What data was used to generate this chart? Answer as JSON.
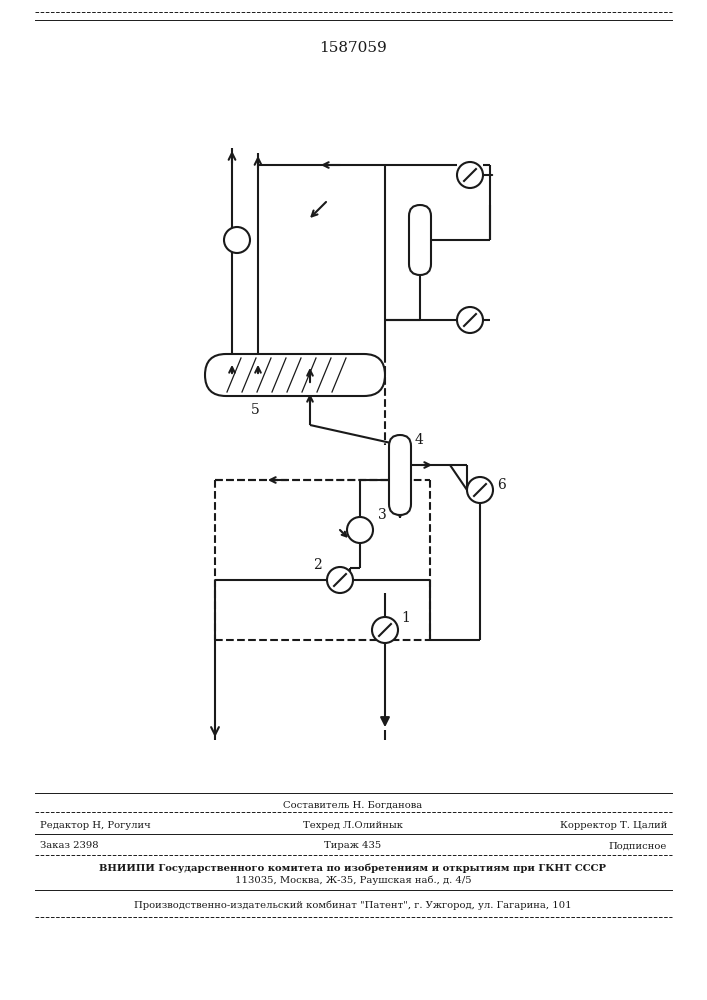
{
  "title": "1587059",
  "background_color": "#ffffff",
  "line_color": "#1a1a1a",
  "line_width": 1.5,
  "footer": {
    "sestavitel": "Составитель Н. Богданова",
    "redaktor": "Редактор Н, Рогулич",
    "tehred": "Техред Л.Олийнык",
    "korrektor": "Корректор Т. Цалий",
    "zakaz": "Заказ 2398",
    "tirazh": "Тираж 435",
    "podpisnoe": "Подписное",
    "vniipи_line1": "ВНИИПИ Государственного комитета по изобретениям и открытиям при ГКНТ СССР",
    "vniipи_line2": "113035, Москва, Ж-35, Раушская наб., д. 4/5",
    "patent": "Производственно-издательский комбинат \"Патент\", г. Ужгород, ул. Гагарина, 101"
  }
}
